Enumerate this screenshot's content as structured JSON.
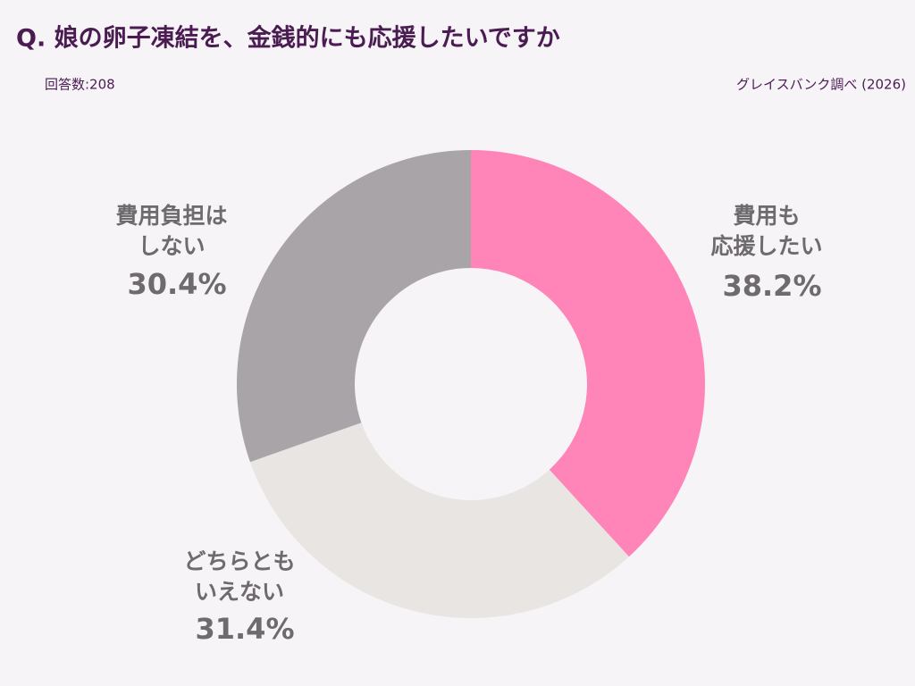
{
  "chart_data": {
    "type": "donut",
    "title": "Q. 娘の卵子凍結を、金銭的にも応援したいですか",
    "subtitle": "回答数:208",
    "source": "グレイスバンク調べ (2026)",
    "categories": [
      [
        "費用も",
        "応援したい"
      ],
      [
        "どちらとも",
        "いえない"
      ],
      [
        "費用負担は",
        "しない"
      ]
    ],
    "values": [
      38.2,
      31.4,
      30.4
    ],
    "value_labels": [
      "38.2%",
      "31.4%",
      "30.4%"
    ],
    "colors": [
      "#ff85b8",
      "#e9e5e3",
      "#a9a4a8"
    ]
  }
}
